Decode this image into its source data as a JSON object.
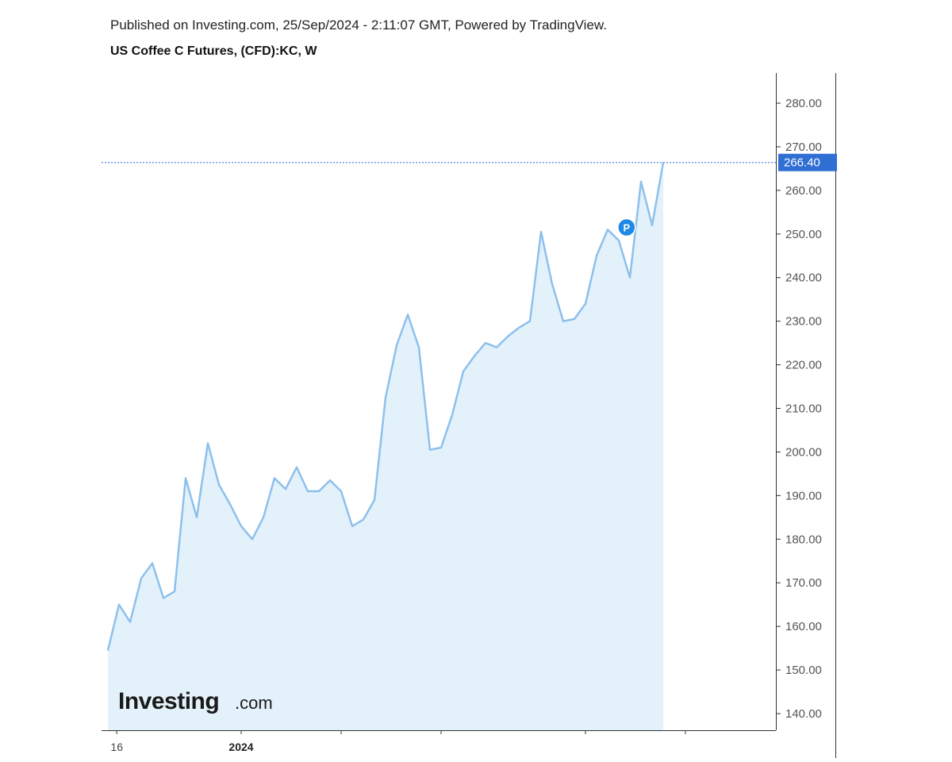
{
  "header": {
    "published": "Published on Investing.com, 25/Sep/2024 - 2:11:07 GMT, Powered by TradingView.",
    "title": "US Coffee C Futures, (CFD):KC, W"
  },
  "logo": {
    "brand": "Investing",
    "suffix": ".com"
  },
  "marker": {
    "letter": "P"
  },
  "colors": {
    "line": "#8ec0ec",
    "fill": "#e3f1fb",
    "last_label_bg": "#2f6fd4",
    "marker_bg": "#1e88e5"
  },
  "chart_data": {
    "type": "area",
    "title": "US Coffee C Futures, (CFD):KC, W",
    "xlabel": "",
    "ylabel": "",
    "ylim": [
      136,
      292
    ],
    "y_ticks": [
      "280.00",
      "270.00",
      "260.00",
      "250.00",
      "240.00",
      "230.00",
      "220.00",
      "210.00",
      "200.00",
      "190.00",
      "180.00",
      "170.00",
      "160.00",
      "150.00",
      "140.00"
    ],
    "x_ticks": [
      {
        "label": "16",
        "index": 0.8
      },
      {
        "label": "2024",
        "index": 12.0,
        "bold": true
      },
      {
        "label": "",
        "index": 21.0
      },
      {
        "label": "",
        "index": 30.0
      },
      {
        "label": "",
        "index": 43.0
      },
      {
        "label": "",
        "index": 52.0
      }
    ],
    "last_value": "266.40",
    "marker_index": 46.7,
    "marker_value": 251.5,
    "grid": false,
    "series": [
      {
        "values": [
          154.5,
          165.0,
          161.0,
          171.0,
          174.5,
          166.5,
          168.0,
          194.0,
          185.0,
          202.0,
          192.5,
          188.0,
          183.0,
          180.0,
          185.0,
          194.0,
          191.5,
          196.5,
          191.0,
          191.0,
          193.5,
          191.0,
          183.0,
          184.5,
          189.0,
          212.5,
          224.5,
          231.5,
          224.0,
          200.5,
          201.0,
          208.5,
          218.5,
          222.0,
          225.0,
          224.0,
          226.5,
          228.5,
          230.0,
          250.5,
          238.5,
          230.0,
          230.5,
          234.0,
          245.0,
          251.0,
          248.5,
          240.0,
          262.0,
          252.0,
          266.4
        ]
      }
    ]
  }
}
